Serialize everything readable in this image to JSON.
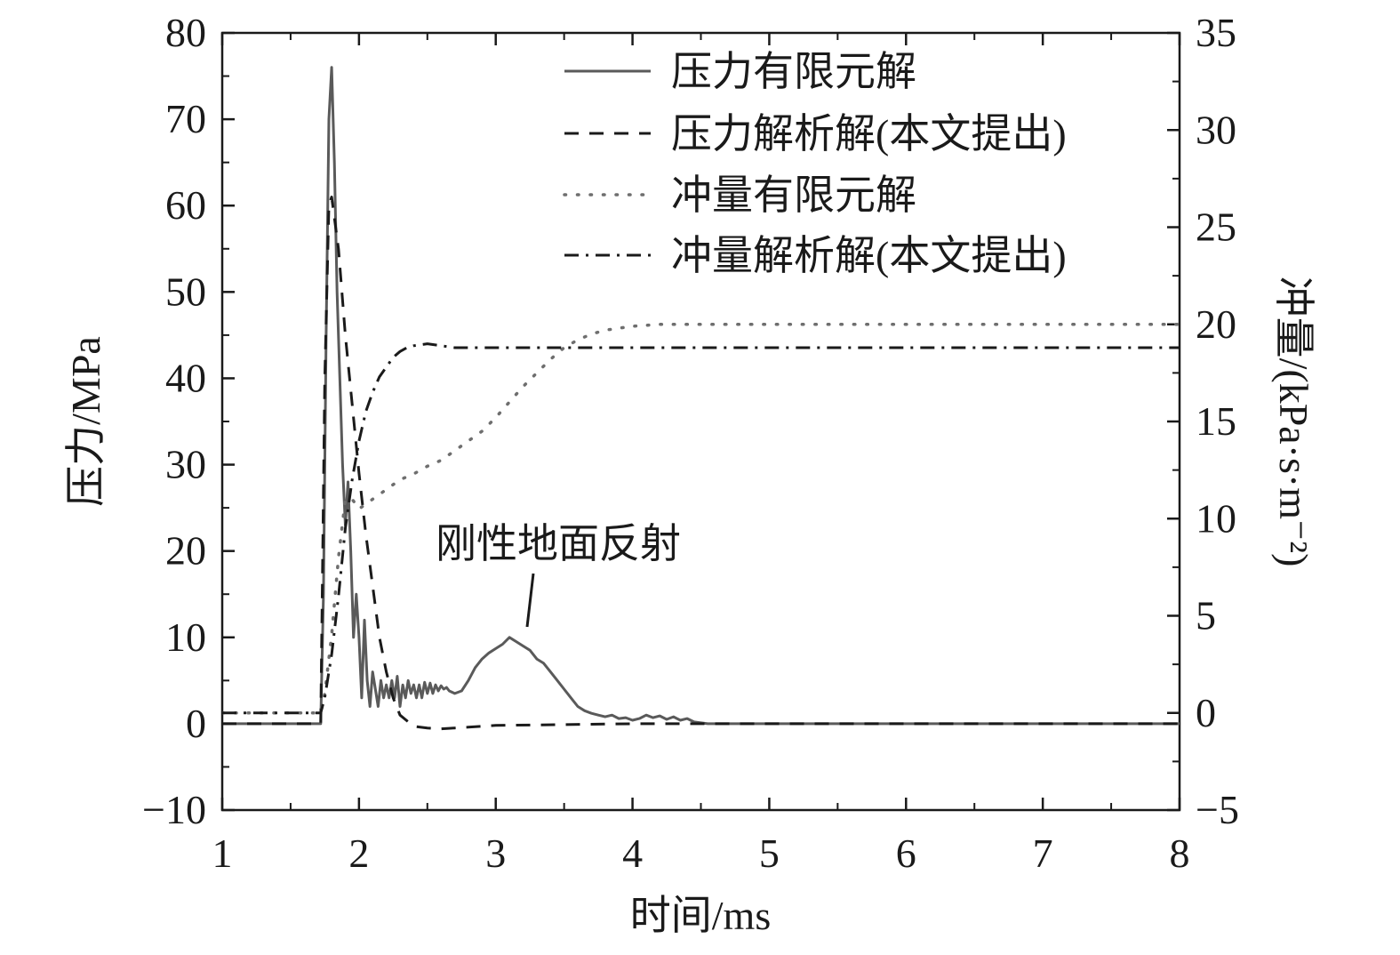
{
  "chart_data": {
    "type": "line",
    "xlabel": "时间/ms",
    "ylabel": "压力/MPa",
    "y2label": "冲量/(kPa·s·m⁻²)",
    "xlim": [
      1,
      8
    ],
    "ylim": [
      -10,
      80
    ],
    "y2lim": [
      -5,
      35
    ],
    "xticks": [
      1,
      2,
      3,
      4,
      5,
      6,
      7,
      8
    ],
    "yticks": [
      -10,
      0,
      10,
      20,
      30,
      40,
      50,
      60,
      70,
      80
    ],
    "y2ticks": [
      -5,
      0,
      5,
      10,
      15,
      20,
      25,
      30,
      35
    ],
    "xtick_labels": [
      "1",
      "2",
      "3",
      "4",
      "5",
      "6",
      "7",
      "8"
    ],
    "ytick_labels": [
      "−10",
      "0",
      "10",
      "20",
      "30",
      "40",
      "50",
      "60",
      "70",
      "80"
    ],
    "y2tick_labels": [
      "−5",
      "0",
      "5",
      "10",
      "15",
      "20",
      "25",
      "30",
      "35"
    ],
    "grid": false,
    "legend_position": "top-right",
    "annotation": {
      "text": "刚性地面反射",
      "x": 3.25,
      "y": 10
    },
    "series": [
      {
        "name": "压力有限元解",
        "axis": "left",
        "style": "solid",
        "color": "#5a5a5a",
        "x": [
          1.0,
          1.72,
          1.74,
          1.76,
          1.78,
          1.8,
          1.82,
          1.84,
          1.86,
          1.88,
          1.9,
          1.92,
          1.94,
          1.96,
          1.98,
          2.0,
          2.02,
          2.04,
          2.06,
          2.08,
          2.1,
          2.12,
          2.14,
          2.16,
          2.18,
          2.2,
          2.22,
          2.24,
          2.26,
          2.28,
          2.3,
          2.32,
          2.34,
          2.36,
          2.38,
          2.4,
          2.42,
          2.44,
          2.46,
          2.48,
          2.5,
          2.52,
          2.54,
          2.56,
          2.58,
          2.6,
          2.62,
          2.64,
          2.66,
          2.7,
          2.75,
          2.8,
          2.85,
          2.9,
          2.95,
          3.0,
          3.05,
          3.1,
          3.15,
          3.2,
          3.25,
          3.3,
          3.35,
          3.4,
          3.45,
          3.5,
          3.55,
          3.6,
          3.65,
          3.7,
          3.75,
          3.8,
          3.85,
          3.9,
          3.95,
          4.0,
          4.05,
          4.1,
          4.15,
          4.2,
          4.25,
          4.3,
          4.35,
          4.4,
          4.45,
          4.5,
          4.55,
          4.6,
          5.0,
          6.0,
          7.0,
          8.0
        ],
        "y": [
          0,
          0,
          15,
          45,
          70,
          76,
          65,
          50,
          40,
          30,
          23,
          28,
          20,
          10,
          15,
          10,
          3,
          12,
          5,
          2,
          6,
          4,
          2,
          5,
          3,
          4.5,
          3,
          5,
          3,
          5.5,
          2,
          4.5,
          3,
          5,
          3.5,
          4.5,
          3,
          4.5,
          3,
          4.8,
          3.5,
          4.7,
          3.5,
          4.5,
          3.8,
          4.4,
          4,
          4.2,
          3.8,
          3.5,
          3.8,
          5,
          6.5,
          7.5,
          8.2,
          8.7,
          9.2,
          10,
          9.5,
          9,
          8.5,
          7.5,
          7,
          6,
          5,
          4,
          3,
          2,
          1.5,
          1.2,
          1,
          0.8,
          1,
          0.6,
          0.7,
          0.4,
          0.6,
          1,
          0.7,
          0.9,
          0.5,
          0.8,
          0.4,
          0.6,
          0.2,
          0.1,
          0,
          0,
          0,
          0,
          0,
          0
        ]
      },
      {
        "name": "压力解析解(本文提出)",
        "axis": "left",
        "style": "dashed",
        "color": "#1a1a1a",
        "x": [
          1.0,
          1.72,
          1.75,
          1.78,
          1.8,
          1.85,
          1.9,
          1.95,
          2.0,
          2.05,
          2.1,
          2.15,
          2.2,
          2.25,
          2.3,
          2.4,
          2.5,
          2.6,
          2.7,
          2.8,
          3.0,
          3.5,
          4.0,
          4.5,
          5.0,
          6.0,
          7.0,
          8.0
        ],
        "y": [
          0,
          0,
          40,
          60,
          61,
          55,
          45,
          37,
          29,
          22,
          16,
          10,
          6,
          3,
          1,
          -0.3,
          -0.5,
          -0.6,
          -0.5,
          -0.4,
          -0.2,
          -0.1,
          0,
          0,
          0,
          0,
          0,
          0
        ]
      },
      {
        "name": "冲量有限元解",
        "axis": "right",
        "style": "dotted",
        "color": "#6e6e6e",
        "x": [
          1.0,
          1.72,
          1.75,
          1.8,
          1.85,
          1.9,
          1.95,
          2.0,
          2.1,
          2.2,
          2.3,
          2.4,
          2.5,
          2.6,
          2.7,
          2.8,
          2.9,
          3.0,
          3.1,
          3.2,
          3.3,
          3.4,
          3.5,
          3.6,
          3.7,
          3.8,
          3.9,
          4.0,
          4.2,
          4.5,
          5.0,
          6.0,
          7.0,
          8.0
        ],
        "y": [
          0,
          0,
          1,
          4,
          8,
          11,
          11,
          10.5,
          11,
          11.5,
          12,
          12.3,
          12.7,
          13,
          13.5,
          14,
          14.5,
          15.2,
          16,
          16.8,
          17.5,
          18.2,
          18.8,
          19.2,
          19.5,
          19.7,
          19.8,
          19.9,
          20,
          20,
          20,
          20,
          20,
          20
        ]
      },
      {
        "name": "冲量解析解(本文提出)",
        "axis": "right",
        "style": "dash-dot",
        "color": "#1a1a1a",
        "x": [
          1.0,
          1.72,
          1.75,
          1.8,
          1.85,
          1.9,
          1.95,
          2.0,
          2.05,
          2.1,
          2.15,
          2.2,
          2.25,
          2.3,
          2.35,
          2.4,
          2.5,
          2.6,
          2.7,
          3.0,
          4.0,
          5.0,
          6.0,
          7.0,
          8.0
        ],
        "y": [
          0,
          0,
          0.8,
          3,
          6,
          9.5,
          12,
          14,
          15.5,
          16.5,
          17.3,
          17.8,
          18.3,
          18.6,
          18.8,
          18.9,
          19,
          18.9,
          18.8,
          18.8,
          18.8,
          18.8,
          18.8,
          18.8,
          18.8
        ]
      }
    ]
  }
}
